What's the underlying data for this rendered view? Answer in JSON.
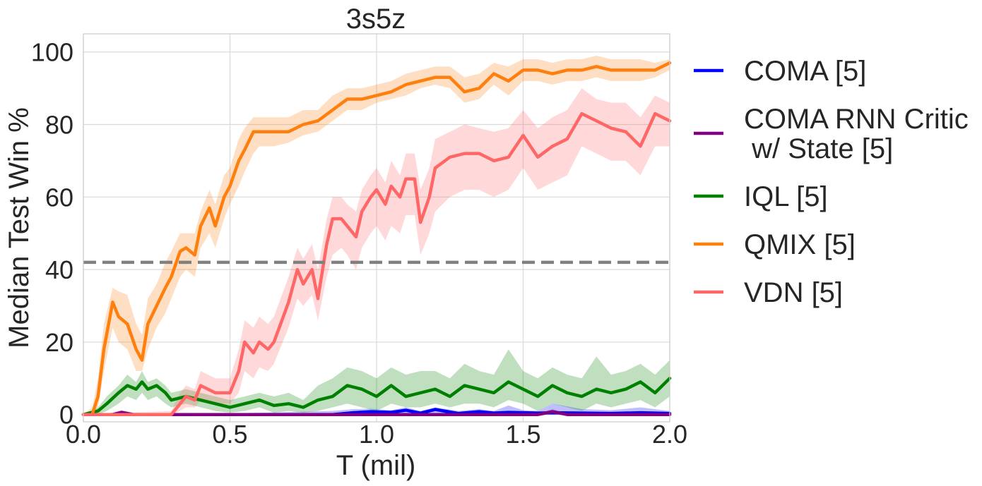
{
  "chart_data": {
    "type": "line",
    "title": "3s5z",
    "xlabel": "T (mil)",
    "ylabel": "Median Test Win %",
    "xlim": [
      0,
      2.0
    ],
    "ylim": [
      -2,
      105
    ],
    "xticks": [
      "0.0",
      "0.5",
      "1.0",
      "1.5",
      "2.0"
    ],
    "yticks": [
      "0",
      "20",
      "40",
      "60",
      "80",
      "100"
    ],
    "grid": true,
    "legend_position": "outside-right",
    "reference_line": {
      "y": 42,
      "style": "dashed",
      "color": "#808080"
    },
    "series": [
      {
        "name": "COMA [5]",
        "color": "#0000ff",
        "x": [
          0.0,
          0.2,
          0.4,
          0.6,
          0.85,
          0.92,
          0.98,
          1.05,
          1.1,
          1.15,
          1.2,
          1.28,
          1.35,
          1.4,
          1.45,
          1.5,
          1.55,
          1.6,
          1.7,
          1.8,
          1.9,
          2.0
        ],
        "y": [
          0,
          0,
          0,
          0,
          0,
          0.5,
          0.8,
          0.6,
          1.2,
          0.4,
          1.4,
          0.3,
          0.8,
          0.4,
          0.6,
          0.5,
          0.4,
          0.5,
          0.4,
          0.3,
          0.5,
          0.3
        ],
        "lower": [
          0,
          0,
          0,
          0,
          0,
          0,
          0,
          0,
          0,
          0,
          0,
          0,
          0,
          0,
          0,
          0,
          0,
          0,
          0,
          0,
          0,
          0
        ],
        "upper": [
          0,
          0.3,
          0.2,
          0.5,
          1.0,
          1.5,
          1.6,
          1.2,
          2.0,
          1.0,
          2.0,
          1.0,
          1.5,
          1.0,
          2.5,
          1.2,
          1.0,
          3.0,
          1.5,
          1.2,
          2.0,
          1.0
        ]
      },
      {
        "name": "COMA RNN Critic\n w/ State [5]",
        "color": "#800080",
        "x": [
          0.0,
          0.1,
          0.13,
          0.17,
          0.3,
          0.5,
          0.8,
          1.0,
          1.2,
          1.4,
          1.55,
          1.6,
          1.65,
          1.8,
          2.0
        ],
        "y": [
          0,
          0,
          0.6,
          0,
          0,
          0,
          0,
          0,
          0,
          0,
          0,
          0.8,
          0,
          0,
          0
        ],
        "lower": [
          0,
          0,
          0,
          0,
          0,
          0,
          0,
          0,
          0,
          0,
          0,
          0,
          0,
          0,
          0
        ],
        "upper": [
          0,
          0.5,
          1.2,
          0.5,
          0.3,
          0.2,
          0.2,
          0.2,
          0.2,
          0.2,
          0.3,
          1.5,
          0.4,
          0.3,
          0.2
        ]
      },
      {
        "name": "IQL [5]",
        "color": "#008000",
        "x": [
          0.0,
          0.05,
          0.08,
          0.12,
          0.15,
          0.18,
          0.2,
          0.22,
          0.25,
          0.28,
          0.3,
          0.35,
          0.4,
          0.45,
          0.5,
          0.55,
          0.6,
          0.65,
          0.7,
          0.75,
          0.8,
          0.85,
          0.9,
          0.95,
          1.0,
          1.05,
          1.1,
          1.15,
          1.2,
          1.25,
          1.3,
          1.35,
          1.4,
          1.45,
          1.5,
          1.55,
          1.6,
          1.65,
          1.7,
          1.75,
          1.8,
          1.85,
          1.9,
          1.95,
          2.0
        ],
        "y": [
          0,
          1,
          3,
          6,
          8,
          7,
          9,
          7,
          8,
          6,
          4,
          5,
          4,
          3,
          2,
          3,
          4,
          2.5,
          3,
          2,
          4,
          5,
          8,
          7,
          5,
          8,
          5,
          6,
          7,
          5,
          8,
          7,
          6,
          9,
          7,
          5,
          8,
          6,
          5,
          7,
          6,
          7,
          9,
          6,
          10
        ],
        "lower": [
          0,
          0,
          1,
          3,
          5,
          4,
          6,
          4,
          5,
          3,
          2,
          3,
          2,
          1,
          0.5,
          1,
          2,
          0.5,
          1,
          0.5,
          1,
          2,
          3,
          2,
          1,
          3,
          2,
          2,
          3,
          2,
          3,
          3,
          2,
          4,
          3,
          1,
          3,
          2,
          1,
          3,
          2,
          3,
          4,
          2,
          5
        ],
        "upper": [
          0,
          2,
          5,
          8,
          11,
          9,
          12,
          9,
          10,
          8,
          6,
          7,
          6,
          5,
          4,
          5,
          6,
          5,
          6,
          4,
          8,
          10,
          13,
          12,
          10,
          13,
          11,
          12,
          12,
          10,
          14,
          12,
          11,
          18,
          12,
          10,
          13,
          11,
          10,
          16,
          11,
          12,
          14,
          11,
          15
        ]
      },
      {
        "name": "QMIX [5]",
        "color": "#ff7f0e",
        "x": [
          0.0,
          0.03,
          0.05,
          0.07,
          0.1,
          0.12,
          0.15,
          0.18,
          0.2,
          0.22,
          0.25,
          0.28,
          0.3,
          0.33,
          0.35,
          0.38,
          0.4,
          0.43,
          0.45,
          0.48,
          0.5,
          0.53,
          0.55,
          0.58,
          0.6,
          0.65,
          0.7,
          0.75,
          0.8,
          0.85,
          0.9,
          0.95,
          1.0,
          1.05,
          1.1,
          1.15,
          1.2,
          1.25,
          1.3,
          1.35,
          1.4,
          1.45,
          1.5,
          1.55,
          1.6,
          1.65,
          1.7,
          1.75,
          1.8,
          1.85,
          1.9,
          1.95,
          2.0
        ],
        "y": [
          0,
          0,
          5,
          18,
          31,
          27,
          25,
          18,
          15,
          25,
          30,
          35,
          38,
          45,
          46,
          44,
          52,
          57,
          52,
          60,
          63,
          70,
          73,
          78,
          78,
          78,
          78,
          80,
          81,
          84,
          87,
          87,
          88,
          89,
          91,
          92,
          93,
          93,
          89,
          90,
          94,
          92,
          95,
          95,
          94,
          95,
          95,
          96,
          95,
          95,
          95,
          95,
          97
        ],
        "lower": [
          0,
          0,
          2,
          12,
          24,
          20,
          18,
          12,
          12,
          18,
          24,
          28,
          32,
          38,
          40,
          38,
          46,
          50,
          46,
          54,
          58,
          63,
          67,
          72,
          74,
          74,
          75,
          77,
          78,
          81,
          84,
          84,
          86,
          87,
          88,
          90,
          91,
          90,
          86,
          87,
          91,
          88,
          92,
          92,
          91,
          92,
          92,
          93,
          92,
          92,
          92,
          93,
          95
        ],
        "upper": [
          0,
          2,
          10,
          25,
          35,
          34,
          33,
          25,
          22,
          32,
          36,
          42,
          45,
          50,
          50,
          50,
          56,
          62,
          58,
          66,
          68,
          76,
          79,
          82,
          82,
          82,
          82,
          84,
          84,
          88,
          90,
          90,
          91,
          92,
          94,
          95,
          96,
          96,
          93,
          94,
          97,
          96,
          98,
          98,
          97,
          98,
          98,
          99,
          98,
          98,
          98,
          97,
          98
        ]
      },
      {
        "name": "VDN [5]",
        "color": "#ff6666",
        "x": [
          0.0,
          0.3,
          0.33,
          0.35,
          0.38,
          0.4,
          0.45,
          0.5,
          0.53,
          0.55,
          0.58,
          0.6,
          0.63,
          0.65,
          0.7,
          0.73,
          0.75,
          0.78,
          0.8,
          0.83,
          0.85,
          0.88,
          0.9,
          0.93,
          0.95,
          0.98,
          1.0,
          1.03,
          1.05,
          1.08,
          1.1,
          1.13,
          1.15,
          1.18,
          1.2,
          1.25,
          1.3,
          1.35,
          1.4,
          1.45,
          1.5,
          1.55,
          1.6,
          1.65,
          1.7,
          1.75,
          1.8,
          1.85,
          1.9,
          1.95,
          2.0
        ],
        "y": [
          0,
          0,
          3,
          5,
          4,
          8,
          6,
          6,
          12,
          20,
          17,
          20,
          18,
          20,
          31,
          40,
          36,
          40,
          32,
          47,
          54,
          54,
          52,
          49,
          56,
          60,
          62,
          58,
          63,
          60,
          65,
          65,
          53,
          60,
          68,
          71,
          72,
          72,
          70,
          71,
          77,
          71,
          74,
          76,
          83,
          81,
          79,
          78,
          74,
          83,
          81
        ],
        "lower": [
          0,
          0,
          1,
          2,
          2,
          4,
          3,
          3,
          6,
          12,
          10,
          13,
          12,
          14,
          24,
          32,
          30,
          33,
          26,
          38,
          44,
          46,
          44,
          40,
          46,
          50,
          52,
          48,
          52,
          50,
          55,
          55,
          44,
          50,
          56,
          60,
          62,
          62,
          60,
          62,
          68,
          62,
          64,
          66,
          74,
          72,
          70,
          70,
          66,
          74,
          74
        ],
        "upper": [
          0,
          1,
          6,
          8,
          7,
          12,
          10,
          10,
          18,
          26,
          24,
          27,
          25,
          27,
          38,
          46,
          43,
          47,
          40,
          54,
          60,
          60,
          58,
          56,
          62,
          66,
          68,
          64,
          70,
          66,
          72,
          72,
          62,
          68,
          76,
          78,
          80,
          79,
          78,
          79,
          84,
          79,
          82,
          84,
          90,
          87,
          86,
          86,
          82,
          88,
          86
        ]
      }
    ]
  }
}
